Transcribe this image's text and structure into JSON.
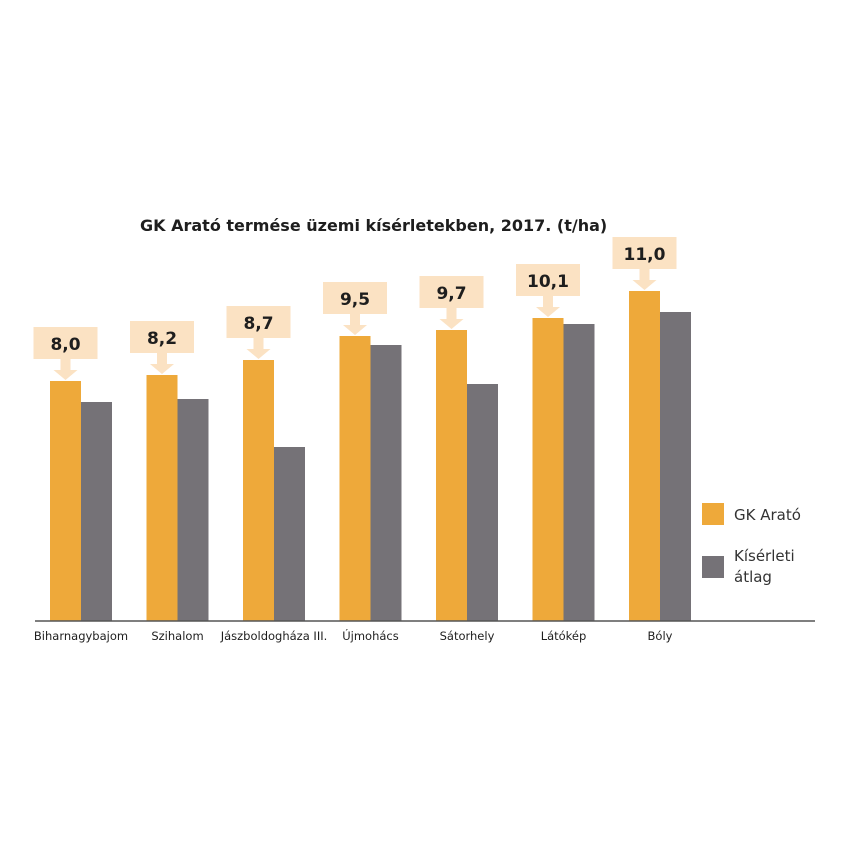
{
  "chart_data": {
    "type": "bar",
    "title": "GK Arató termése üzemi kísérletekben, 2017. (t/ha)",
    "xlabel": "",
    "ylabel": "",
    "ylim": [
      0,
      12
    ],
    "grid": false,
    "legend_position": "right",
    "categories": [
      "Biharnagybajom",
      "Szihalom",
      "Jászboldogháza III.",
      "Újmohács",
      "Sátorhely",
      "Látókép",
      "Bóly"
    ],
    "series": [
      {
        "name": "GK Arató",
        "color": "#eea93a",
        "values": [
          8.0,
          8.2,
          8.7,
          9.5,
          9.7,
          10.1,
          11.0
        ]
      },
      {
        "name": "Kísérleti átlag",
        "name_lines": [
          "Kísérleti",
          "átlag"
        ],
        "color": "#757277",
        "values": [
          7.3,
          7.4,
          5.8,
          9.2,
          7.9,
          9.9,
          10.3
        ]
      }
    ],
    "data_labels": [
      "8,0",
      "8,2",
      "8,7",
      "9,5",
      "9,7",
      "10,1",
      "11,0"
    ],
    "callout_color": "#fbe2c3",
    "axis_color": "#555555"
  }
}
